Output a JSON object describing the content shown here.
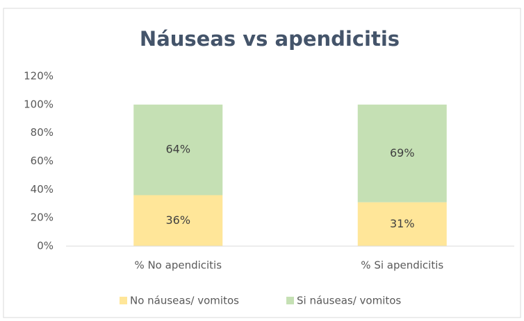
{
  "chart_data": {
    "type": "stacked_bar",
    "title": "Náuseas vs apendicitis",
    "categories": [
      "% No apendicitis",
      "% Si apendicitis"
    ],
    "series": [
      {
        "name": "No náuseas/ vomitos",
        "color": "#ffe699",
        "values": [
          36,
          31
        ],
        "value_labels": [
          "36%",
          "31%"
        ]
      },
      {
        "name": "Si náuseas/ vomitos",
        "color": "#c5e0b4",
        "values": [
          64,
          69
        ],
        "value_labels": [
          "64%",
          "69%"
        ]
      }
    ],
    "ylim": [
      0,
      120
    ],
    "yticks": [
      {
        "value": 0,
        "label": "0%"
      },
      {
        "value": 20,
        "label": "20%"
      },
      {
        "value": 40,
        "label": "40%"
      },
      {
        "value": 60,
        "label": "60%"
      },
      {
        "value": 80,
        "label": "80%"
      },
      {
        "value": 100,
        "label": "100%"
      },
      {
        "value": 120,
        "label": "120%"
      }
    ],
    "grid": false,
    "legend": "bottom"
  }
}
